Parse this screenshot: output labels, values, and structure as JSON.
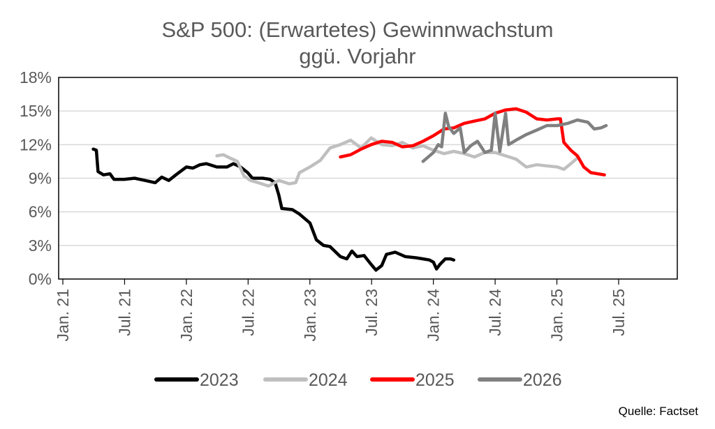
{
  "chart_data": {
    "type": "line",
    "title_line1": "S&P 500: (Erwartetes) Gewinnwachstum",
    "title_line2": "ggü. Vorjahr",
    "ylim": [
      0,
      18
    ],
    "yticks": [
      "0%",
      "3%",
      "6%",
      "9%",
      "12%",
      "15%",
      "18%"
    ],
    "xticks": [
      "Jan. 21",
      "Jul. 21",
      "Jan. 22",
      "Jul. 22",
      "Jan. 23",
      "Jul. 23",
      "Jan. 24",
      "Jul. 24",
      "Jan. 25",
      "Jul. 25"
    ],
    "grid": true,
    "legend_position": "bottom",
    "series": [
      {
        "name": "2023",
        "color": "#000000",
        "points": [
          [
            "2021-04-01",
            11.6
          ],
          [
            "2021-04-10",
            11.5
          ],
          [
            "2021-04-15",
            9.6
          ],
          [
            "2021-05-01",
            9.3
          ],
          [
            "2021-05-20",
            9.4
          ],
          [
            "2021-06-01",
            8.9
          ],
          [
            "2021-07-01",
            8.9
          ],
          [
            "2021-08-01",
            9.0
          ],
          [
            "2021-09-01",
            8.8
          ],
          [
            "2021-10-01",
            8.6
          ],
          [
            "2021-10-20",
            9.1
          ],
          [
            "2021-11-10",
            8.8
          ],
          [
            "2021-12-01",
            9.3
          ],
          [
            "2022-01-01",
            10.0
          ],
          [
            "2022-01-20",
            9.9
          ],
          [
            "2022-02-10",
            10.2
          ],
          [
            "2022-03-01",
            10.3
          ],
          [
            "2022-04-01",
            10.0
          ],
          [
            "2022-05-01",
            10.0
          ],
          [
            "2022-05-20",
            10.3
          ],
          [
            "2022-06-10",
            10.0
          ],
          [
            "2022-07-01",
            9.5
          ],
          [
            "2022-07-15",
            9.0
          ],
          [
            "2022-08-15",
            9.0
          ],
          [
            "2022-09-05",
            8.9
          ],
          [
            "2022-09-20",
            8.6
          ],
          [
            "2022-10-01",
            7.5
          ],
          [
            "2022-10-10",
            6.3
          ],
          [
            "2022-11-10",
            6.2
          ],
          [
            "2022-12-01",
            5.8
          ],
          [
            "2023-01-01",
            5.0
          ],
          [
            "2023-01-20",
            3.5
          ],
          [
            "2023-02-10",
            3.0
          ],
          [
            "2023-03-01",
            2.9
          ],
          [
            "2023-04-01",
            2.0
          ],
          [
            "2023-04-20",
            1.8
          ],
          [
            "2023-05-05",
            2.5
          ],
          [
            "2023-05-20",
            2.0
          ],
          [
            "2023-06-10",
            2.1
          ],
          [
            "2023-07-01",
            1.3
          ],
          [
            "2023-07-15",
            0.8
          ],
          [
            "2023-08-01",
            1.2
          ],
          [
            "2023-08-15",
            2.2
          ],
          [
            "2023-09-10",
            2.4
          ],
          [
            "2023-10-10",
            2.0
          ],
          [
            "2023-11-10",
            1.9
          ],
          [
            "2023-12-01",
            1.8
          ],
          [
            "2023-12-20",
            1.7
          ],
          [
            "2024-01-01",
            1.5
          ],
          [
            "2024-01-10",
            0.9
          ],
          [
            "2024-01-20",
            1.3
          ],
          [
            "2024-02-05",
            1.8
          ],
          [
            "2024-02-20",
            1.8
          ],
          [
            "2024-03-01",
            1.7
          ]
        ]
      },
      {
        "name": "2024",
        "color": "#bfbfbf",
        "points": [
          [
            "2022-04-01",
            11.0
          ],
          [
            "2022-04-20",
            11.1
          ],
          [
            "2022-05-10",
            10.8
          ],
          [
            "2022-06-01",
            10.5
          ],
          [
            "2022-06-20",
            9.2
          ],
          [
            "2022-07-10",
            8.8
          ],
          [
            "2022-08-01",
            8.6
          ],
          [
            "2022-09-01",
            8.3
          ],
          [
            "2022-10-01",
            8.8
          ],
          [
            "2022-11-01",
            8.5
          ],
          [
            "2022-11-20",
            8.6
          ],
          [
            "2022-12-01",
            9.5
          ],
          [
            "2023-01-01",
            10.0
          ],
          [
            "2023-02-01",
            10.6
          ],
          [
            "2023-03-01",
            11.7
          ],
          [
            "2023-04-01",
            12.0
          ],
          [
            "2023-05-01",
            12.4
          ],
          [
            "2023-06-01",
            11.7
          ],
          [
            "2023-07-01",
            12.6
          ],
          [
            "2023-08-01",
            12.0
          ],
          [
            "2023-09-01",
            11.9
          ],
          [
            "2023-10-01",
            12.2
          ],
          [
            "2023-11-01",
            11.7
          ],
          [
            "2023-12-01",
            11.9
          ],
          [
            "2024-01-01",
            11.5
          ],
          [
            "2024-02-01",
            11.2
          ],
          [
            "2024-03-01",
            11.4
          ],
          [
            "2024-04-01",
            11.2
          ],
          [
            "2024-05-01",
            10.9
          ],
          [
            "2024-06-01",
            11.3
          ],
          [
            "2024-07-01",
            11.3
          ],
          [
            "2024-08-01",
            11.0
          ],
          [
            "2024-09-01",
            10.7
          ],
          [
            "2024-10-01",
            10.0
          ],
          [
            "2024-11-01",
            10.2
          ],
          [
            "2024-12-01",
            10.1
          ],
          [
            "2025-01-01",
            10.0
          ],
          [
            "2025-01-20",
            9.8
          ],
          [
            "2025-02-10",
            10.3
          ],
          [
            "2025-03-01",
            10.8
          ]
        ]
      },
      {
        "name": "2025",
        "color": "#ff0000",
        "points": [
          [
            "2023-04-01",
            10.9
          ],
          [
            "2023-05-01",
            11.1
          ],
          [
            "2023-06-01",
            11.6
          ],
          [
            "2023-07-01",
            12.0
          ],
          [
            "2023-08-01",
            12.3
          ],
          [
            "2023-09-01",
            12.2
          ],
          [
            "2023-10-01",
            11.8
          ],
          [
            "2023-11-01",
            11.9
          ],
          [
            "2023-12-01",
            12.3
          ],
          [
            "2024-01-01",
            12.8
          ],
          [
            "2024-02-01",
            13.4
          ],
          [
            "2024-03-01",
            13.5
          ],
          [
            "2024-04-01",
            13.9
          ],
          [
            "2024-05-01",
            14.1
          ],
          [
            "2024-06-01",
            14.3
          ],
          [
            "2024-07-01",
            14.8
          ],
          [
            "2024-08-01",
            15.1
          ],
          [
            "2024-09-01",
            15.2
          ],
          [
            "2024-10-01",
            14.9
          ],
          [
            "2024-11-01",
            14.3
          ],
          [
            "2024-12-01",
            14.2
          ],
          [
            "2025-01-01",
            14.3
          ],
          [
            "2025-01-10",
            14.3
          ],
          [
            "2025-01-20",
            12.2
          ],
          [
            "2025-02-10",
            11.5
          ],
          [
            "2025-03-01",
            11.0
          ],
          [
            "2025-03-20",
            10.0
          ],
          [
            "2025-04-10",
            9.5
          ],
          [
            "2025-05-20",
            9.3
          ]
        ]
      },
      {
        "name": "2026",
        "color": "#808080",
        "points": [
          [
            "2023-12-01",
            10.5
          ],
          [
            "2024-01-01",
            11.3
          ],
          [
            "2024-01-15",
            12.0
          ],
          [
            "2024-01-25",
            11.8
          ],
          [
            "2024-02-05",
            14.8
          ],
          [
            "2024-02-15",
            13.6
          ],
          [
            "2024-03-01",
            13.0
          ],
          [
            "2024-03-20",
            13.5
          ],
          [
            "2024-04-01",
            11.3
          ],
          [
            "2024-04-20",
            11.9
          ],
          [
            "2024-05-10",
            12.3
          ],
          [
            "2024-06-01",
            11.3
          ],
          [
            "2024-06-20",
            11.5
          ],
          [
            "2024-07-01",
            14.8
          ],
          [
            "2024-07-15",
            11.4
          ],
          [
            "2024-08-01",
            14.8
          ],
          [
            "2024-08-10",
            12.0
          ],
          [
            "2024-09-01",
            12.4
          ],
          [
            "2024-10-01",
            12.9
          ],
          [
            "2024-11-01",
            13.3
          ],
          [
            "2024-12-01",
            13.7
          ],
          [
            "2025-01-01",
            13.7
          ],
          [
            "2025-02-01",
            13.9
          ],
          [
            "2025-03-01",
            14.2
          ],
          [
            "2025-04-01",
            14.0
          ],
          [
            "2025-04-20",
            13.4
          ],
          [
            "2025-05-10",
            13.5
          ],
          [
            "2025-05-25",
            13.7
          ]
        ]
      }
    ]
  },
  "source": "Quelle: Factset"
}
